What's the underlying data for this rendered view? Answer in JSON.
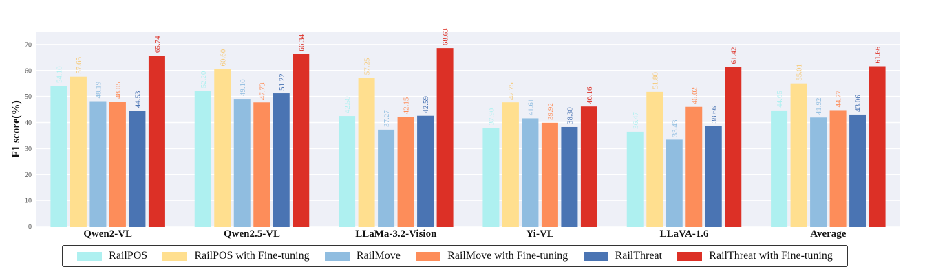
{
  "chart_data": {
    "type": "bar",
    "ylabel": "F1 score(%)",
    "xlabel": "",
    "ylim": [
      0,
      75
    ],
    "yticks": [
      0,
      10,
      20,
      30,
      40,
      50,
      60,
      70
    ],
    "grid": true,
    "legend_position": "bottom",
    "categories": [
      "Qwen2-VL",
      "Qwen2.5-VL",
      "LLaMa-3.2-Vision",
      "Yi-VL",
      "LLaVA-1.6",
      "Average"
    ],
    "series": [
      {
        "name": "RailPOS",
        "color": "#aef0f0",
        "values": [
          54.1,
          52.2,
          42.5,
          37.9,
          36.47,
          44.65
        ]
      },
      {
        "name": "RailPOS with Fine-tuning",
        "color": "#ffdf8f",
        "values": [
          57.65,
          60.6,
          57.25,
          47.75,
          51.8,
          55.01
        ]
      },
      {
        "name": "RailMove",
        "color": "#90bde0",
        "values": [
          48.19,
          49.1,
          37.27,
          41.61,
          33.43,
          41.92
        ]
      },
      {
        "name": "RailMove with Fine-tuning",
        "color": "#fd8d5a",
        "values": [
          48.05,
          47.73,
          42.15,
          39.92,
          46.02,
          44.77
        ]
      },
      {
        "name": "RailThreat",
        "color": "#4a74b3",
        "values": [
          44.53,
          51.22,
          42.59,
          38.3,
          38.66,
          43.06
        ]
      },
      {
        "name": "RailThreat with Fine-tuning",
        "color": "#dc3026",
        "values": [
          65.74,
          66.34,
          68.63,
          46.16,
          61.42,
          61.66
        ]
      }
    ],
    "value_label_colors": [
      "#aef0f0",
      "#f5c979",
      "#90bde0",
      "#fd8d5a",
      "#4a74b3",
      "#dc3026"
    ]
  }
}
